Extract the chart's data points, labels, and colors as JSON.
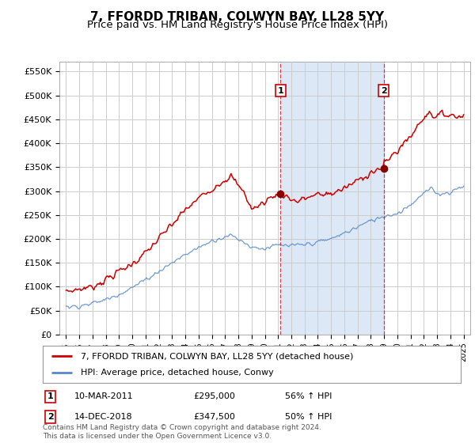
{
  "title": "7, FFORDD TRIBAN, COLWYN BAY, LL28 5YY",
  "subtitle": "Price paid vs. HM Land Registry's House Price Index (HPI)",
  "title_fontsize": 11,
  "subtitle_fontsize": 9.5,
  "background_color": "#ffffff",
  "plot_bg_color": "#ffffff",
  "shade_color": "#dce8f5",
  "grid_color": "#cccccc",
  "red_line_color": "#cc0000",
  "blue_line_color": "#5588cc",
  "sale1_year": 2011.19,
  "sale1_price": 295000,
  "sale2_year": 2018.96,
  "sale2_price": 347500,
  "ylim": [
    0,
    570000
  ],
  "yticks": [
    0,
    50000,
    100000,
    150000,
    200000,
    250000,
    300000,
    350000,
    400000,
    450000,
    500000,
    550000
  ],
  "xlim_start": 1994.5,
  "xlim_end": 2025.5,
  "xtick_years": [
    1995,
    1996,
    1997,
    1998,
    1999,
    2000,
    2001,
    2002,
    2003,
    2004,
    2005,
    2006,
    2007,
    2008,
    2009,
    2010,
    2011,
    2012,
    2013,
    2014,
    2015,
    2016,
    2017,
    2018,
    2019,
    2020,
    2021,
    2022,
    2023,
    2024,
    2025
  ],
  "legend_entry1": "7, FFORDD TRIBAN, COLWYN BAY, LL28 5YY (detached house)",
  "legend_entry2": "HPI: Average price, detached house, Conwy",
  "annotation1_date": "10-MAR-2011",
  "annotation1_price": "£295,000",
  "annotation1_hpi": "56% ↑ HPI",
  "annotation2_date": "14-DEC-2018",
  "annotation2_price": "£347,500",
  "annotation2_hpi": "50% ↑ HPI",
  "footnote": "Contains HM Land Registry data © Crown copyright and database right 2024.\nThis data is licensed under the Open Government Licence v3.0."
}
